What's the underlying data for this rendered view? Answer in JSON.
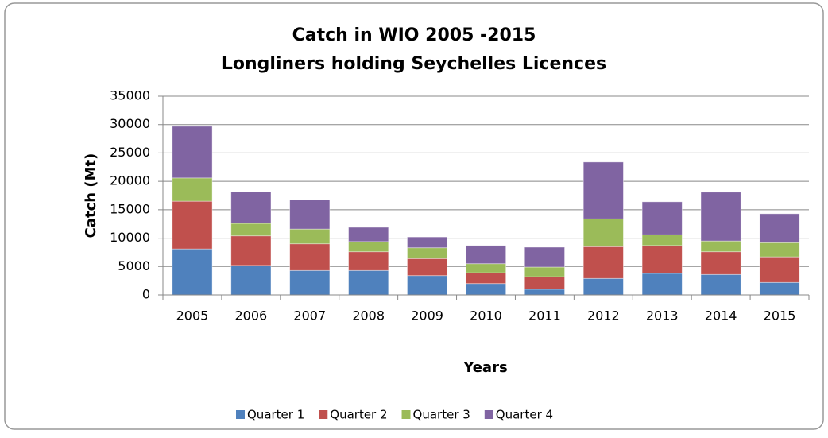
{
  "chart_data": {
    "type": "stacked_bar",
    "title": "Catch in WIO 2005 -2015",
    "subtitle": "Longliners holding Seychelles Licences",
    "x_label": "Years",
    "y_label": "Catch (Mt)",
    "categories": [
      "2005",
      "2006",
      "2007",
      "2008",
      "2009",
      "2010",
      "2011",
      "2012",
      "2013",
      "2014",
      "2015"
    ],
    "series": [
      {
        "name": "Quarter 1",
        "color": "#4f81bd",
        "values": [
          8100,
          5200,
          4300,
          4300,
          3400,
          2000,
          1000,
          2900,
          3800,
          3600,
          2200
        ]
      },
      {
        "name": "Quarter 2",
        "color": "#c0504d",
        "values": [
          8400,
          5200,
          4700,
          3300,
          3000,
          1900,
          2200,
          5600,
          4900,
          4000,
          4500
        ]
      },
      {
        "name": "Quarter 3",
        "color": "#9bbb59",
        "values": [
          4100,
          2200,
          2600,
          1800,
          1900,
          1600,
          1700,
          4900,
          1900,
          1900,
          2500
        ]
      },
      {
        "name": "Quarter 4",
        "color": "#8064a2",
        "values": [
          9100,
          5600,
          5200,
          2500,
          1900,
          3200,
          3500,
          10000,
          5800,
          8600,
          5100
        ]
      }
    ],
    "ylim": [
      0,
      35000
    ],
    "yticks": [
      0,
      5000,
      10000,
      15000,
      20000,
      25000,
      30000,
      35000
    ],
    "grid": true,
    "legend": "bottom"
  }
}
